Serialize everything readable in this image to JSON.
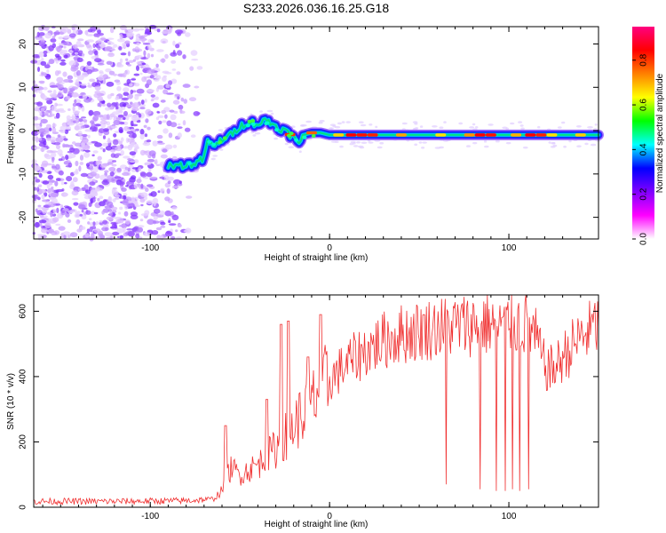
{
  "title": "S233.2026.036.16.25.G18",
  "chart_data": [
    {
      "type": "heatmap",
      "xlabel": "Height of straight line (km)",
      "ylabel": "Frequency (Hz)",
      "xlim": [
        -165,
        150
      ],
      "ylim": [
        -25,
        24
      ],
      "xticks": [
        -100,
        0,
        100
      ],
      "xtick_labels": [
        "-100",
        "0",
        "100"
      ],
      "yticks": [
        -20,
        -10,
        0,
        10,
        20
      ],
      "ytick_labels": [
        "-20",
        "-10",
        "0",
        "10",
        "20"
      ],
      "colorbar": {
        "label": "Normalized spectral amplitude",
        "range": [
          0.0,
          0.95
        ],
        "ticks": [
          0.0,
          0.2,
          0.4,
          0.6,
          0.8
        ],
        "tick_labels": [
          "0.0",
          "0.2",
          "0.4",
          "0.6",
          "0.8"
        ],
        "colormap": [
          "#ffffff",
          "#ff00ff",
          "#8000ff",
          "#0000ff",
          "#00ffff",
          "#00ff00",
          "#ffff00",
          "#ff8000",
          "#ff0000",
          "#ff0080"
        ]
      },
      "trace": {
        "x": [
          -90,
          -80,
          -75,
          -70,
          -68,
          -65,
          -60,
          -55,
          -50,
          -45,
          -40,
          -35,
          -30,
          -25,
          -20,
          -17,
          -15,
          -10,
          -5,
          0,
          10,
          20,
          40,
          60,
          80,
          100,
          120,
          140,
          150
        ],
        "y": [
          -8,
          -8,
          -7.5,
          -6.5,
          -2,
          -4,
          -2,
          -1,
          1,
          2,
          1.5,
          2.5,
          1,
          0,
          -1.5,
          -3.5,
          -1,
          -0.5,
          -0.5,
          -1,
          -1,
          -1,
          -1,
          -1,
          -1,
          -1,
          -1,
          -1,
          -1
        ],
        "description": "Bright ridge of high spectral amplitude near 0 Hz from ~-20 km to 150 km; noisy scatter left of ~-70 km"
      }
    },
    {
      "type": "line",
      "xlabel": "Height of straight line (km)",
      "ylabel": "SNR (10 * v/v)",
      "xlim": [
        -165,
        150
      ],
      "ylim": [
        0,
        650
      ],
      "xticks": [
        -100,
        0,
        100
      ],
      "xtick_labels": [
        "-100",
        "0",
        "100"
      ],
      "yticks": [
        0,
        200,
        400,
        600
      ],
      "ytick_labels": [
        "0",
        "200",
        "400",
        "600"
      ],
      "color": "#f03030",
      "envelope": {
        "x": [
          -165,
          -120,
          -80,
          -65,
          -60,
          -55,
          -50,
          -40,
          -30,
          -20,
          -10,
          0,
          10,
          20,
          30,
          40,
          60,
          80,
          100,
          110,
          115,
          120,
          125,
          130,
          140,
          150
        ],
        "y": [
          18,
          18,
          20,
          25,
          50,
          120,
          100,
          130,
          180,
          250,
          320,
          390,
          440,
          480,
          510,
          530,
          550,
          560,
          565,
          560,
          520,
          430,
          420,
          460,
          520,
          560
        ]
      },
      "dropouts": [
        {
          "x": 65,
          "y": 70
        },
        {
          "x": 84,
          "y": 55
        },
        {
          "x": 93,
          "y": 50
        },
        {
          "x": 98,
          "y": 50
        },
        {
          "x": 102,
          "y": 55
        },
        {
          "x": 106,
          "y": 50
        },
        {
          "x": 111,
          "y": 55
        }
      ],
      "spikes": [
        {
          "x": -58,
          "y": 250
        },
        {
          "x": -35,
          "y": 330
        },
        {
          "x": -27,
          "y": 560
        },
        {
          "x": -23,
          "y": 570
        },
        {
          "x": -12,
          "y": 460
        },
        {
          "x": -5,
          "y": 590
        }
      ]
    }
  ]
}
